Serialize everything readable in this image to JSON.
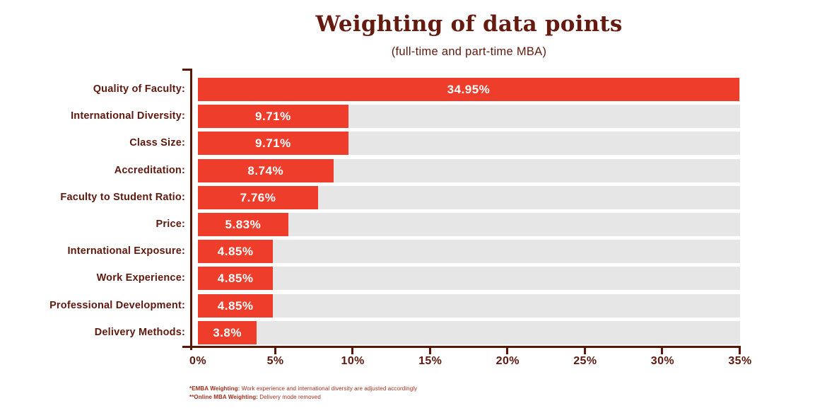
{
  "chart_data": {
    "type": "bar",
    "orientation": "horizontal",
    "title": "Weighting of data points",
    "subtitle": "(full-time and part-time MBA)",
    "categories": [
      "Quality of Faculty:",
      "International Diversity:",
      "Class Size:",
      "Accreditation:",
      "Faculty to Student Ratio:",
      "Price:",
      "International Exposure:",
      "Work Experience:",
      "Professional Development:",
      "Delivery Methods:"
    ],
    "values": [
      34.95,
      9.71,
      9.71,
      8.74,
      7.76,
      5.83,
      4.85,
      4.85,
      4.85,
      3.8
    ],
    "value_labels": [
      "34.95%",
      "9.71%",
      "9.71%",
      "8.74%",
      "7.76%",
      "5.83%",
      "4.85%",
      "4.85%",
      "4.85%",
      "3.8%"
    ],
    "x_axis": {
      "min": 0,
      "max": 35,
      "tick_step": 5,
      "tick_labels": [
        "0%",
        "5%",
        "10%",
        "15%",
        "20%",
        "25%",
        "30%",
        "35%"
      ]
    },
    "grid": false,
    "legend": "none",
    "colors": {
      "bar": "#EE3D2B",
      "track": "#E6E6E6",
      "axis": "#5A1708",
      "title_text": "#651B10",
      "label_text": "#5E190E",
      "value_text": "#FFFFFF",
      "footnote_text": "#9E2D1B"
    }
  },
  "footnotes": [
    {
      "bold": "*EMBA Weighting:",
      "text": " Work experience and international diversity are adjusted accordingly"
    },
    {
      "bold": "**Online MBA Weighting:",
      "text": " Delivery mode removed"
    }
  ]
}
